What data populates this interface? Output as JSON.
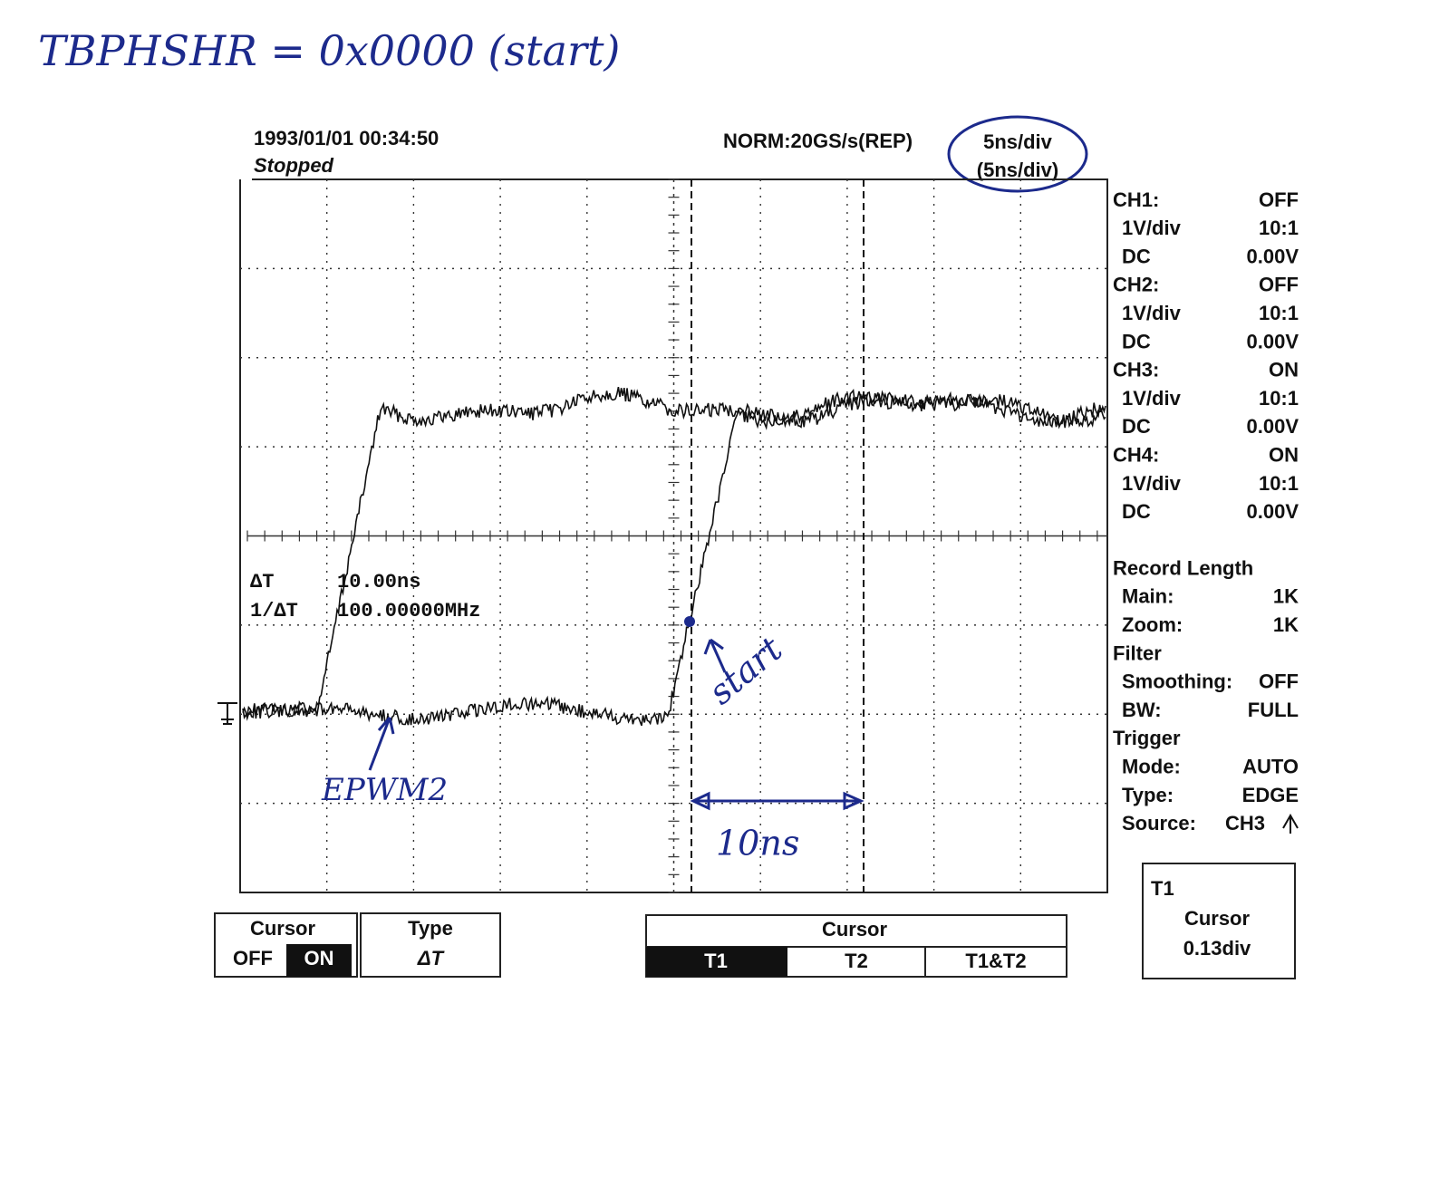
{
  "annotation": {
    "title": "TBPHSHR = 0x0000 (start)",
    "start": "start",
    "signal": "EPWM2",
    "interval": "10ns"
  },
  "header": {
    "datetime": "1993/01/01 00:34:50",
    "status": "Stopped",
    "acquisition": "NORM:20GS/s(REP)",
    "timebase": "5ns/div",
    "zoom_timebase": "(5ns/div)"
  },
  "measurements": [
    {
      "label": "ΔT",
      "value": "10.00ns"
    },
    {
      "label": "1/ΔT",
      "value": "100.00000MHz"
    }
  ],
  "settings": [
    {
      "label": "CH1:",
      "value": "OFF"
    },
    {
      "label": "1V/div",
      "value": "10:1"
    },
    {
      "label": "DC",
      "value": "0.00V"
    },
    {
      "label": "CH2:",
      "value": "OFF"
    },
    {
      "label": "1V/div",
      "value": "10:1"
    },
    {
      "label": "DC",
      "value": "0.00V"
    },
    {
      "label": "CH3:",
      "value": "ON"
    },
    {
      "label": "1V/div",
      "value": "10:1"
    },
    {
      "label": "DC",
      "value": "0.00V"
    },
    {
      "label": "CH4:",
      "value": "ON"
    },
    {
      "label": "1V/div",
      "value": "10:1"
    },
    {
      "label": "DC",
      "value": "0.00V"
    },
    {
      "label": "Record Length"
    },
    {
      "label": "Main:",
      "value": "1K"
    },
    {
      "label": "Zoom:",
      "value": "1K"
    },
    {
      "label": "Filter"
    },
    {
      "label": "Smoothing:",
      "value": "OFF"
    },
    {
      "label": "BW:",
      "value": "FULL"
    },
    {
      "label": "Trigger"
    },
    {
      "label": "Mode:",
      "value": "AUTO"
    },
    {
      "label": "Type:",
      "value": "EDGE"
    },
    {
      "label": "Source:",
      "value": "CH3"
    }
  ],
  "menu": {
    "cursor": {
      "title": "Cursor",
      "options": [
        "OFF",
        "ON"
      ]
    },
    "type": {
      "title": "Type",
      "value": "ΔT"
    },
    "cursor_select": {
      "title": "Cursor",
      "options": [
        "T1",
        "T2",
        "T1&T2"
      ]
    },
    "position": {
      "title": "T1",
      "subtitle": "Cursor",
      "value": "0.13div"
    }
  }
}
